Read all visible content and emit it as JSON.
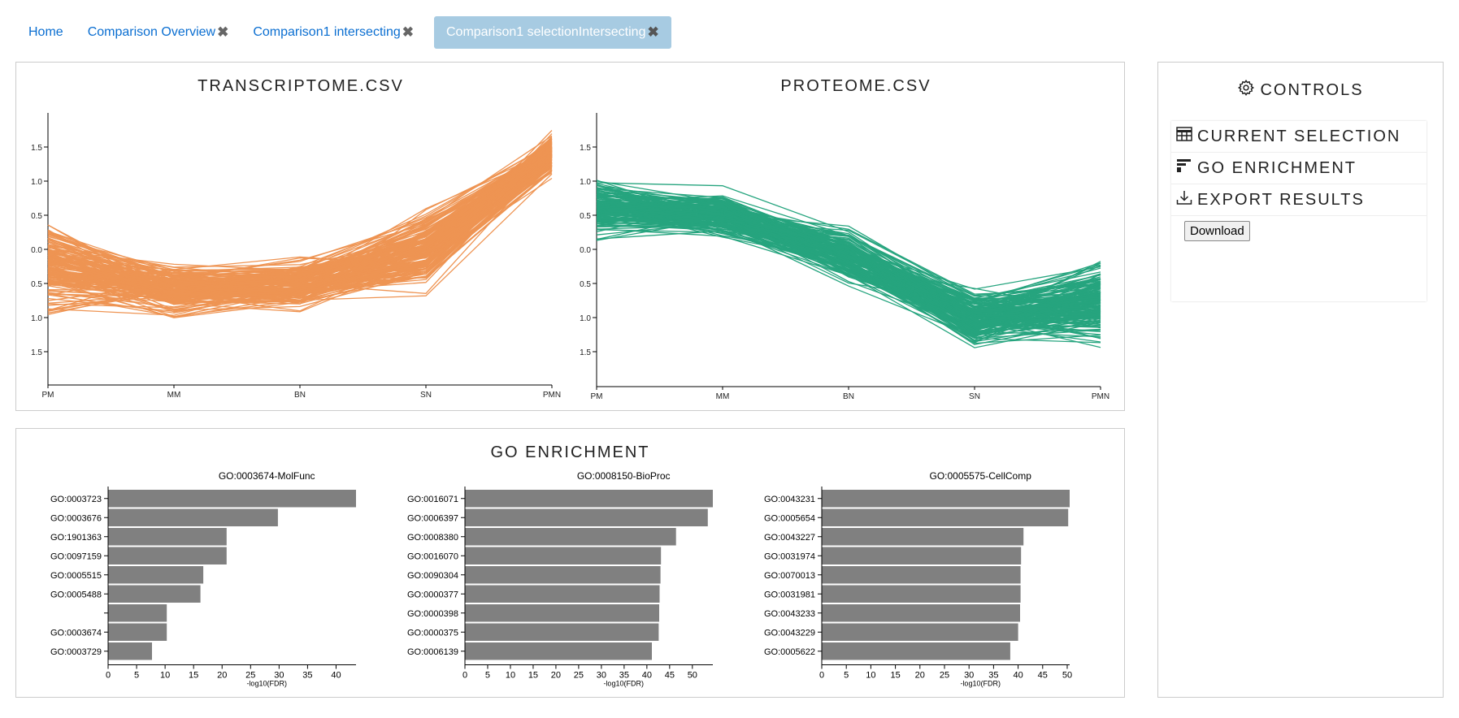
{
  "tabs": [
    {
      "label": "Home",
      "closable": false
    },
    {
      "label": "Comparison Overview",
      "closable": true
    },
    {
      "label": "Comparison1 intersecting",
      "closable": true
    },
    {
      "label": "Comparison1 selectionIntersecting",
      "closable": true,
      "active": true
    }
  ],
  "close_glyph": "✖",
  "parallel": {
    "transcriptome": {
      "title": "TRANSCRIPTOME.CSV",
      "color": "#ee8f4a"
    },
    "proteome": {
      "title": "PROTEOME.CSV",
      "color": "#1ba078"
    },
    "axes": [
      "PM",
      "MM",
      "BN",
      "SN",
      "PMN"
    ],
    "y_ticks": [
      "1.5",
      "1.0",
      "0.5",
      "0.0",
      "0.5",
      "1.0",
      "1.5"
    ]
  },
  "go": {
    "title": "GO ENRICHMENT",
    "xlabel": "-log10(FDR)",
    "bar_color": "#808080"
  },
  "chart_data": [
    {
      "type": "bar",
      "title": "GO:0003674-MolFunc",
      "xlabel": "-log10(FDR)",
      "categories": [
        "GO:0003723",
        "GO:0003676",
        "GO:1901363",
        "GO:0097159",
        "GO:0005515",
        "GO:0005488",
        "",
        "GO:0003674",
        "GO:0003729"
      ],
      "values": [
        43.5,
        29.8,
        20.8,
        20.8,
        16.7,
        16.2,
        10.3,
        10.3,
        7.7
      ],
      "xticks": [
        0,
        5,
        10,
        15,
        20,
        25,
        30,
        35,
        40
      ],
      "xlim": [
        0,
        43.5
      ]
    },
    {
      "type": "bar",
      "title": "GO:0008150-BioProc",
      "xlabel": "-log10(FDR)",
      "categories": [
        "GO:0016071",
        "GO:0006397",
        "GO:0008380",
        "GO:0016070",
        "GO:0090304",
        "GO:0000377",
        "GO:0000398",
        "GO:0000375",
        "GO:0006139"
      ],
      "values": [
        54.5,
        53.4,
        46.4,
        43.1,
        43.0,
        42.8,
        42.7,
        42.6,
        41.1
      ],
      "xticks": [
        0,
        5,
        10,
        15,
        20,
        25,
        30,
        35,
        40,
        45,
        50
      ],
      "xlim": [
        0,
        54.5
      ]
    },
    {
      "type": "bar",
      "title": "GO:0005575-CellComp",
      "xlabel": "-log10(FDR)",
      "categories": [
        "GO:0043231",
        "GO:0005654",
        "GO:0043227",
        "GO:0031974",
        "GO:0070013",
        "GO:0031981",
        "GO:0043233",
        "GO:0043229",
        "GO:0005622"
      ],
      "values": [
        50.5,
        50.2,
        41.1,
        40.6,
        40.5,
        40.5,
        40.4,
        40.0,
        38.4
      ],
      "xticks": [
        0,
        5,
        10,
        15,
        20,
        25,
        30,
        35,
        40,
        45,
        50
      ],
      "xlim": [
        0,
        50.5
      ]
    }
  ],
  "controls": {
    "title": "CONTROLS",
    "items": [
      {
        "label": "CURRENT SELECTION",
        "icon": "table-icon"
      },
      {
        "label": "GO ENRICHMENT",
        "icon": "bar-chart-icon"
      },
      {
        "label": "EXPORT RESULTS",
        "icon": "download-icon"
      }
    ],
    "download_label": "Download"
  }
}
